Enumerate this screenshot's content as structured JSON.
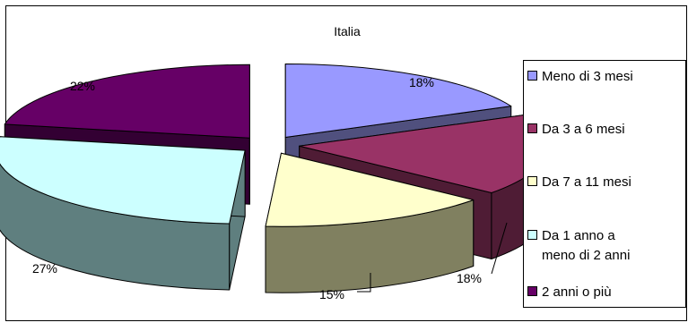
{
  "chart_data": {
    "type": "pie",
    "title": "Italia",
    "categories": [
      "Meno di 3 mesi",
      "Da 3 a 6 mesi",
      "Da 7 a 11 mesi",
      "Da 1 anno a meno di 2 anni",
      "2 anni o più"
    ],
    "values": [
      18,
      18,
      15,
      27,
      22
    ],
    "data_labels": [
      "18%",
      "18%",
      "15%",
      "27%",
      "22%"
    ],
    "legend": {
      "placement": "right",
      "entries": [
        {
          "lines": [
            "Meno di 3 mesi"
          ],
          "color": "#9999FF"
        },
        {
          "lines": [
            "Da 3 a 6 mesi"
          ],
          "color": "#993366"
        },
        {
          "lines": [
            "Da 7 a 11 mesi"
          ],
          "color": "#FFFFCC"
        },
        {
          "lines": [
            "Da 1 anno a",
            "meno di 2 anni"
          ],
          "color": "#CCFFFF"
        },
        {
          "lines": [
            "2 anni o più"
          ],
          "color": "#660066"
        }
      ]
    },
    "colors": {
      "top": [
        "#9999FF",
        "#993366",
        "#FFFFCC",
        "#CCFFFF",
        "#660066"
      ],
      "side": [
        "#50507E",
        "#4F1C35",
        "#808060",
        "#5F7F7F",
        "#330033"
      ]
    },
    "style": "3d-exploded"
  }
}
